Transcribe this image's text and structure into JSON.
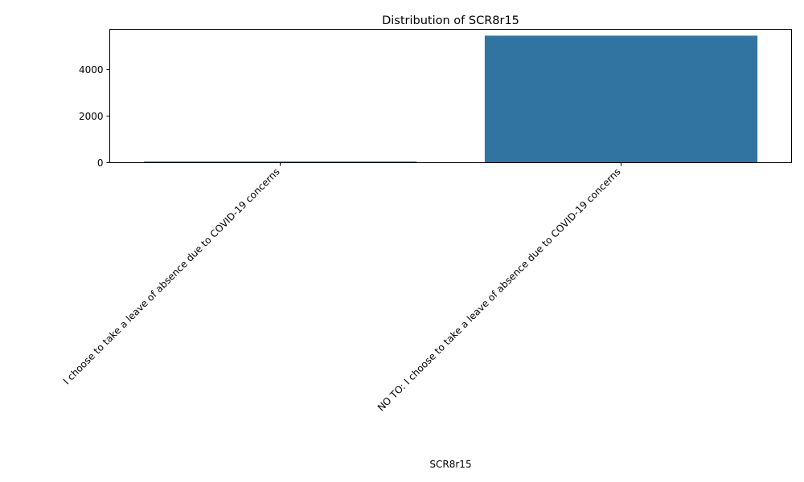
{
  "chart_data": {
    "type": "bar",
    "title": "Distribution of SCR8r15",
    "xlabel": "SCR8r15",
    "ylabel": "",
    "categories": [
      "I choose to take a leave of absence due to COVID-19 concerns",
      "NO TO: I choose to take a leave of absence due to COVID-19 concerns"
    ],
    "values": [
      45,
      5455
    ],
    "ylim": [
      0,
      5727
    ],
    "yticks": [
      0,
      2000,
      4000
    ],
    "colors": [
      "#1f4e79",
      "#3274a1"
    ],
    "grid": false,
    "legend": "none"
  }
}
